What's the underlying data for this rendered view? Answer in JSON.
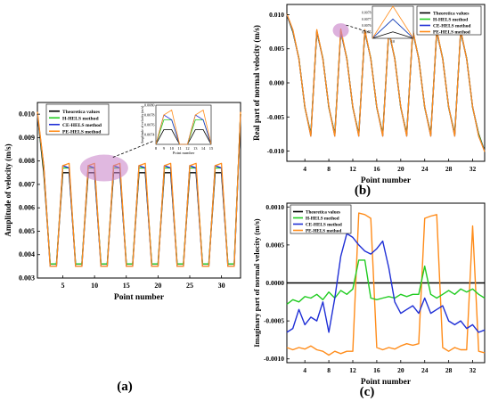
{
  "figure": {
    "panel_labels": [
      "(a)",
      "(b)",
      "(c)"
    ]
  },
  "colors": {
    "theoretical": "#000000",
    "h_hels": "#22cc22",
    "ce_hels": "#1f2fd6",
    "pe_hels": "#ff8c1a",
    "highlight": "#c77dc7"
  },
  "chart_data": [
    {
      "type": "line",
      "panel": "(a)",
      "xlabel": "Point number",
      "ylabel": "Amplitude of velocity (m/s)",
      "xlim": [
        1,
        33
      ],
      "ylim": [
        0.003,
        0.0105
      ],
      "xticks": [
        5,
        10,
        15,
        20,
        25,
        30
      ],
      "yticks": [
        0.003,
        0.004,
        0.005,
        0.006,
        0.007,
        0.008,
        0.009,
        0.01
      ],
      "ytick_labels": [
        "0.003",
        "0.004",
        "0.005",
        "0.006",
        "0.007",
        "0.008",
        "0.009",
        "0.010"
      ],
      "legend_position": "top-left",
      "x": [
        1,
        2,
        3,
        4,
        5,
        6,
        7,
        8,
        9,
        10,
        11,
        12,
        13,
        14,
        15,
        16,
        17,
        18,
        19,
        20,
        21,
        22,
        23,
        24,
        25,
        26,
        27,
        28,
        29,
        30,
        31,
        32,
        33
      ],
      "series": [
        {
          "name": "Theoretica values",
          "values": [
            0.01,
            0.0075,
            0.0036,
            0.0036,
            0.0075,
            0.0075,
            0.0036,
            0.0036,
            0.0075,
            0.0075,
            0.0036,
            0.0036,
            0.0075,
            0.0075,
            0.0036,
            0.0036,
            0.0075,
            0.0075,
            0.0036,
            0.0036,
            0.0075,
            0.0075,
            0.0036,
            0.0036,
            0.0075,
            0.0075,
            0.0036,
            0.0036,
            0.0075,
            0.0075,
            0.0036,
            0.0036,
            0.01
          ]
        },
        {
          "name": "H-HELS method",
          "values": [
            0.01,
            0.0077,
            0.0036,
            0.0036,
            0.0077,
            0.0077,
            0.0036,
            0.0036,
            0.0077,
            0.0077,
            0.0036,
            0.0036,
            0.0077,
            0.0077,
            0.0036,
            0.0036,
            0.0077,
            0.0077,
            0.0036,
            0.0036,
            0.0077,
            0.0077,
            0.0036,
            0.0036,
            0.0077,
            0.0077,
            0.0036,
            0.0036,
            0.0077,
            0.0077,
            0.0036,
            0.0036,
            0.01
          ]
        },
        {
          "name": "CE-HELS method",
          "values": [
            0.01,
            0.0078,
            0.0035,
            0.0035,
            0.0078,
            0.0077,
            0.0035,
            0.0035,
            0.0078,
            0.0077,
            0.0035,
            0.0035,
            0.0078,
            0.0077,
            0.0035,
            0.0035,
            0.0078,
            0.0077,
            0.0035,
            0.0035,
            0.0078,
            0.0077,
            0.0035,
            0.0035,
            0.0078,
            0.0077,
            0.0035,
            0.0035,
            0.0078,
            0.0077,
            0.0035,
            0.0035,
            0.01
          ]
        },
        {
          "name": "PE-HELS method",
          "values": [
            0.0101,
            0.0078,
            0.0035,
            0.0035,
            0.0078,
            0.0079,
            0.0035,
            0.0035,
            0.0078,
            0.0079,
            0.0035,
            0.0035,
            0.0078,
            0.0079,
            0.0035,
            0.0035,
            0.0078,
            0.0079,
            0.0035,
            0.0035,
            0.0078,
            0.0079,
            0.0035,
            0.0035,
            0.0078,
            0.0079,
            0.0035,
            0.0035,
            0.0078,
            0.0079,
            0.0035,
            0.0035,
            0.0101
          ]
        }
      ],
      "inset": {
        "xlabel": "Point number",
        "ylabel": "Amplitude of velocity (m/s)",
        "xlim": [
          8,
          15
        ],
        "ylim": [
          0.0072,
          0.008
        ],
        "xticks": [
          8,
          9,
          10,
          11,
          12,
          13,
          14,
          15
        ],
        "yticks": [
          0.0074,
          0.0076,
          0.0078,
          0.008
        ],
        "ytick_labels": [
          "0.0074",
          "0.0076",
          "0.0078",
          "0.0080"
        ]
      }
    },
    {
      "type": "line",
      "panel": "(b)",
      "xlabel": "Point number",
      "ylabel": "Real part of normal velocity (m/s)",
      "xlim": [
        1,
        34
      ],
      "ylim": [
        -0.0115,
        0.0115
      ],
      "xticks": [
        4,
        8,
        12,
        16,
        20,
        24,
        28,
        32
      ],
      "yticks": [
        -0.01,
        -0.005,
        0.0,
        0.005,
        0.01
      ],
      "ytick_labels": [
        "-0.010",
        "-0.005",
        "0.000",
        "0.005",
        "0.010"
      ],
      "legend_position": "top-right",
      "x": [
        1,
        2,
        3,
        4,
        5,
        6,
        7,
        8,
        9,
        10,
        11,
        12,
        13,
        14,
        15,
        16,
        17,
        18,
        19,
        20,
        21,
        22,
        23,
        24,
        25,
        26,
        27,
        28,
        29,
        30,
        31,
        32,
        33,
        34
      ],
      "series": [
        {
          "name": "Theoretica values",
          "values": [
            0.01,
            0.0075,
            0.0036,
            -0.0036,
            -0.0075,
            0.0075,
            0.0036,
            -0.0036,
            -0.0075,
            0.0075,
            0.0036,
            -0.0036,
            -0.0075,
            0.0075,
            0.0036,
            -0.0036,
            -0.0075,
            0.0075,
            0.0036,
            -0.0036,
            -0.0075,
            0.0075,
            0.0036,
            -0.0036,
            -0.0075,
            0.0075,
            0.0036,
            -0.0036,
            -0.0075,
            0.0075,
            0.0036,
            -0.0036,
            -0.0075,
            -0.01
          ]
        },
        {
          "name": "H-HELS method",
          "values": [
            0.01,
            0.0076,
            0.0036,
            -0.0036,
            -0.0076,
            0.0076,
            0.0036,
            -0.0036,
            -0.0076,
            0.0077,
            0.0036,
            -0.0036,
            -0.0076,
            0.0076,
            0.0036,
            -0.0036,
            -0.0076,
            0.0076,
            0.0036,
            -0.0036,
            -0.0076,
            0.0076,
            0.0036,
            -0.0036,
            -0.0076,
            0.0076,
            0.0036,
            -0.0036,
            -0.0076,
            0.0076,
            0.0036,
            -0.0036,
            -0.0076,
            -0.01
          ]
        },
        {
          "name": "CE-HELS method",
          "values": [
            0.01,
            0.0077,
            0.0035,
            -0.0035,
            -0.0078,
            0.0077,
            0.0035,
            -0.0035,
            -0.0078,
            0.0077,
            0.0035,
            -0.0035,
            -0.0078,
            0.0077,
            0.0035,
            -0.0035,
            -0.0078,
            0.0077,
            0.0035,
            -0.0035,
            -0.0078,
            0.0077,
            0.0035,
            -0.0035,
            -0.0078,
            0.0077,
            0.0035,
            -0.0035,
            -0.0078,
            0.0077,
            0.0035,
            -0.0035,
            -0.0078,
            -0.01
          ]
        },
        {
          "name": "PE-HELS method",
          "values": [
            0.0101,
            0.0078,
            0.0035,
            -0.0035,
            -0.0078,
            0.0078,
            0.0035,
            -0.0035,
            -0.0078,
            0.0079,
            0.0035,
            -0.0035,
            -0.0078,
            0.0078,
            0.0035,
            -0.0035,
            -0.0078,
            0.0078,
            0.0035,
            -0.0035,
            -0.0078,
            0.0078,
            0.0035,
            -0.0035,
            -0.0078,
            0.0078,
            0.0035,
            -0.0035,
            -0.0078,
            0.0078,
            0.0035,
            -0.0035,
            -0.0078,
            -0.0101
          ]
        }
      ],
      "inset": {
        "xlim": [
          9,
          11
        ],
        "ylim": [
          0.0074,
          0.0079
        ],
        "xticks": [
          10
        ],
        "yticks": [
          0.0075,
          0.0076,
          0.0077,
          0.0078
        ],
        "ytick_labels": [
          "0.0075",
          "0.0076",
          "0.0077",
          "0.0078"
        ]
      }
    },
    {
      "type": "line",
      "panel": "(c)",
      "xlabel": "Point number",
      "ylabel": "Imaginary part of normal velocity (m/s)",
      "xlim": [
        1,
        34
      ],
      "ylim": [
        -0.00105,
        0.00105
      ],
      "xticks": [
        4,
        8,
        12,
        16,
        20,
        24,
        28,
        32
      ],
      "yticks": [
        -0.001,
        -0.0005,
        0.0,
        0.0005,
        0.001
      ],
      "ytick_labels": [
        "-0.0010",
        "-0.0005",
        "0.0000",
        "0.0005",
        "0.0010"
      ],
      "legend_position": "top-left",
      "x": [
        1,
        2,
        3,
        4,
        5,
        6,
        7,
        8,
        9,
        10,
        11,
        12,
        13,
        14,
        15,
        16,
        17,
        18,
        19,
        20,
        21,
        22,
        23,
        24,
        25,
        26,
        27,
        28,
        29,
        30,
        31,
        32,
        33,
        34
      ],
      "series": [
        {
          "name": "Theoretica values",
          "values": [
            0,
            0,
            0,
            0,
            0,
            0,
            0,
            0,
            0,
            0,
            0,
            0,
            0,
            0,
            0,
            0,
            0,
            0,
            0,
            0,
            0,
            0,
            0,
            0,
            0,
            0,
            0,
            0,
            0,
            0,
            0,
            0,
            0,
            0
          ]
        },
        {
          "name": "H-HELS method",
          "values": [
            -0.00028,
            -0.00022,
            -0.00025,
            -0.00018,
            -0.0002,
            -0.00015,
            -0.00022,
            -0.00012,
            -0.0002,
            -0.0001,
            -0.00015,
            -8e-05,
            0.0003,
            0.0003,
            -0.0002,
            -0.00022,
            -0.0002,
            -0.00018,
            -0.0002,
            -0.00015,
            -0.00018,
            -0.00015,
            -0.00015,
            0.00022,
            -0.00015,
            -0.0002,
            -0.00015,
            -0.0001,
            -0.00015,
            -8e-05,
            -0.00012,
            -8e-05,
            -0.00015,
            -0.0002
          ]
        },
        {
          "name": "CE-HELS method",
          "values": [
            -0.00065,
            -0.0006,
            -0.00035,
            -0.00055,
            -0.00045,
            -0.0005,
            -0.00025,
            -0.00065,
            -0.0002,
            0.00035,
            0.00065,
            0.0006,
            0.0005,
            0.00042,
            0.00038,
            0.00045,
            0.00055,
            0.0002,
            -0.00025,
            -0.0004,
            -0.00035,
            -0.0003,
            -0.0004,
            -0.0002,
            -0.0004,
            -0.00035,
            -0.0003,
            -0.0005,
            -0.00055,
            -0.0005,
            -0.0006,
            -0.00055,
            -0.00065,
            -0.00062
          ]
        },
        {
          "name": "PE-HELS method",
          "values": [
            -0.00085,
            -0.00088,
            -0.00085,
            -0.00087,
            -0.00083,
            -0.00088,
            -0.0009,
            -0.00095,
            -0.0009,
            -0.00093,
            -0.0009,
            -0.0009,
            0.00092,
            0.0009,
            0.00085,
            -0.00085,
            -0.00088,
            -0.00085,
            -0.00087,
            -0.00083,
            -0.0008,
            -0.00082,
            -0.0008,
            0.00085,
            0.00088,
            0.0009,
            -0.00085,
            -0.0009,
            -0.00085,
            -0.00088,
            -0.00088,
            0.00075,
            -0.0009,
            -0.00092
          ]
        }
      ]
    }
  ]
}
